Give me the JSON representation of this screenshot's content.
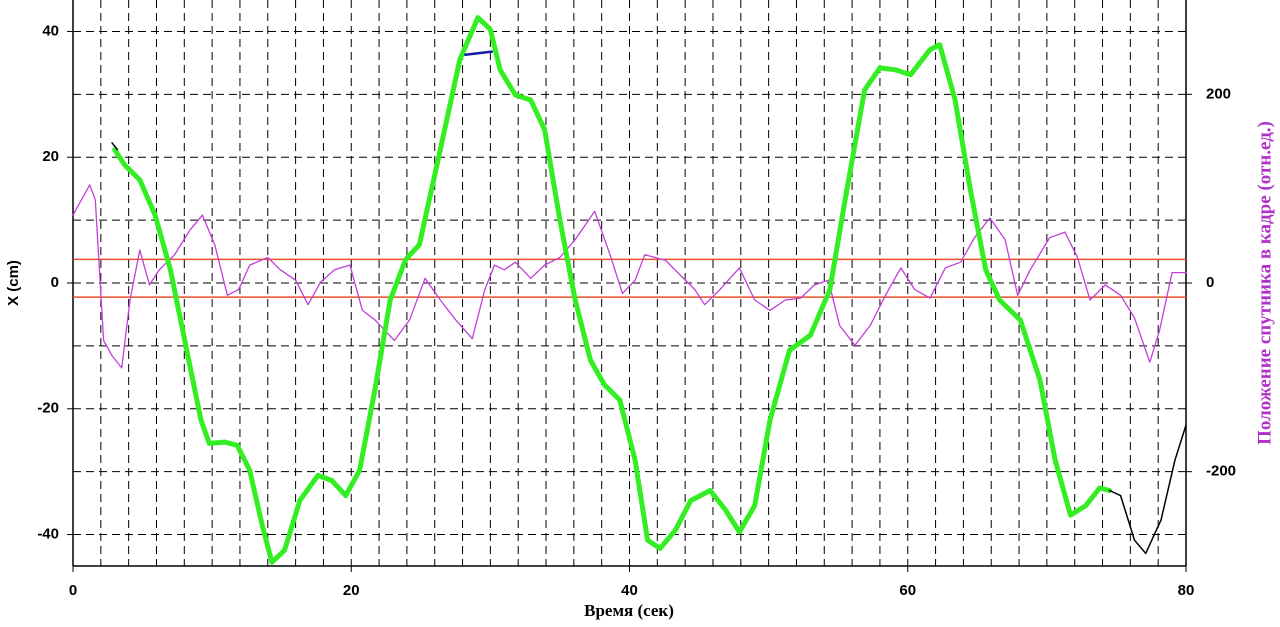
{
  "chart_data": {
    "type": "line",
    "xlabel": "Время (сек)",
    "ylabel": "X (cm)",
    "y2label": "Положение спутника в кадре (отн.ед.)",
    "xlim": [
      0,
      80
    ],
    "xticks": [
      0,
      20,
      40,
      60,
      80
    ],
    "ylim": [
      -45,
      45
    ],
    "yticks": [
      -40,
      -20,
      0,
      20,
      40
    ],
    "y2lim": [
      -300,
      300
    ],
    "y2ticks": [
      -200,
      0,
      200
    ],
    "grid": true,
    "xgrid": [
      2,
      4,
      6,
      8,
      10,
      12,
      14,
      16,
      18,
      20,
      22,
      24,
      26,
      28,
      30,
      32,
      34,
      36,
      38,
      40,
      42,
      44,
      46,
      48,
      50,
      52,
      54,
      56,
      58,
      60,
      62,
      64,
      66,
      68,
      70,
      72,
      74,
      76,
      78
    ],
    "ygrid": [
      -40,
      -30,
      -20,
      -10,
      0,
      10,
      20,
      30,
      40
    ],
    "reference_lines": {
      "axis": "y2",
      "values": [
        25,
        -15
      ],
      "color": "#e8502a"
    },
    "y2color": "#b030c8",
    "series": [
      {
        "color": "#c040d8",
        "width": 1.3,
        "axis": "y2",
        "x": [
          0,
          1.2,
          1.6,
          2.2,
          2.8,
          3.5,
          4.1,
          4.8,
          5.5,
          6.2,
          7.3,
          8.4,
          9.3,
          10.2,
          11.1,
          11.9,
          12.7,
          14.0,
          14.9,
          16.0,
          16.9,
          17.8,
          18.8,
          19.9,
          20.8,
          21.7,
          23.1,
          24.2,
          25.3,
          26.4,
          27.5,
          28.7,
          29.6,
          30.3,
          31.0,
          31.8,
          32.9,
          33.9,
          35.0,
          36.1,
          37.5,
          38.6,
          39.5,
          40.4,
          41.1,
          42.6,
          43.6,
          44.7,
          45.4,
          46.5,
          47.9,
          49.0,
          50.1,
          51.2,
          52.3,
          53.3,
          54.3,
          55.1,
          56.2,
          57.3,
          58.4,
          59.5,
          60.5,
          61.6,
          62.7,
          63.8,
          64.8,
          65.9,
          67.0,
          67.9,
          68.8,
          70.2,
          71.3,
          72.2,
          73.1,
          74.2,
          75.3,
          76.3,
          77.4,
          78.1,
          79.0,
          80
        ],
        "values": [
          72,
          104,
          88,
          -61,
          -77,
          -90,
          -18,
          35,
          -2,
          14,
          30,
          56,
          72,
          40,
          -13,
          -7,
          19,
          27,
          14,
          3,
          -23,
          1,
          14,
          19,
          -29,
          -39,
          -61,
          -39,
          5,
          -18,
          -39,
          -59,
          -7,
          19,
          14,
          22,
          5,
          19,
          27,
          46,
          76,
          30,
          -11,
          3,
          30,
          24,
          9,
          -7,
          -23,
          -7,
          16,
          -18,
          -29,
          -18,
          -16,
          -2,
          3,
          -45,
          -66,
          -45,
          -13,
          16,
          -7,
          -16,
          16,
          22,
          48,
          69,
          46,
          -13,
          14,
          48,
          54,
          27,
          -18,
          -2,
          -13,
          -37,
          -84,
          -50,
          11,
          11
        ]
      },
      {
        "color": "#33ee22",
        "width": 5,
        "x": [
          3.0,
          3.7,
          4.8,
          5.9,
          7.0,
          8.1,
          9.2,
          9.8,
          10.9,
          11.8,
          12.7,
          13.6,
          14.3,
          15.2,
          16.3,
          17.6,
          18.6,
          19.6,
          20.6,
          21.7,
          22.8,
          23.9,
          24.9,
          26.4,
          27.8,
          29.1,
          30.0,
          30.7,
          31.8,
          32.9,
          33.9,
          35.0,
          36.1,
          37.2,
          38.2,
          39.3,
          40.4,
          41.3,
          42.2,
          43.3,
          44.4,
          45.8,
          46.9,
          47.9,
          49.0,
          50.1,
          51.5,
          53.0,
          54.4,
          55.5,
          56.9,
          58.0,
          59.1,
          60.2,
          61.6,
          62.3,
          63.4,
          64.5,
          65.6,
          66.6,
          68.1,
          69.5,
          70.6,
          71.7,
          72.8,
          73.8,
          74.5
        ],
        "values": [
          21.2,
          18.8,
          16.4,
          10.8,
          2.1,
          -9.9,
          -21.8,
          -25.5,
          -25.3,
          -25.8,
          -29.8,
          -38.5,
          -44.4,
          -42.5,
          -34.6,
          -30.6,
          -31.4,
          -33.8,
          -29.8,
          -17.0,
          -2.7,
          3.7,
          6.1,
          21.2,
          35.5,
          42.2,
          40.3,
          33.9,
          29.9,
          29.1,
          24.4,
          10.0,
          -2.7,
          -12.3,
          -16.2,
          -18.6,
          -28.2,
          -40.9,
          -42.2,
          -39.3,
          -34.6,
          -33.0,
          -36.1,
          -39.6,
          -35.4,
          -21.8,
          -10.7,
          -8.3,
          -1.1,
          13.2,
          30.7,
          34.2,
          33.9,
          33.1,
          37.1,
          37.9,
          29.1,
          14.8,
          2.1,
          -2.7,
          -5.9,
          -15.4,
          -28.2,
          -36.9,
          -35.4,
          -32.6,
          -33.0
        ]
      },
      {
        "color": "#000000",
        "width": 1.5,
        "x": [
          74.5,
          75.3,
          76.3,
          77.1,
          78.2,
          79.2,
          80
        ],
        "values": [
          -33.0,
          -33.8,
          -40.9,
          -43.0,
          -37.7,
          -28.2,
          -22.6
        ]
      },
      {
        "color": "#000000",
        "width": 1.5,
        "x": [
          2.8,
          3.2
        ],
        "values": [
          22.3,
          21.2
        ]
      },
      {
        "color": "#1020a0",
        "width": 2.5,
        "x": [
          28.2,
          30.1
        ],
        "values": [
          36.3,
          36.8
        ]
      }
    ]
  }
}
